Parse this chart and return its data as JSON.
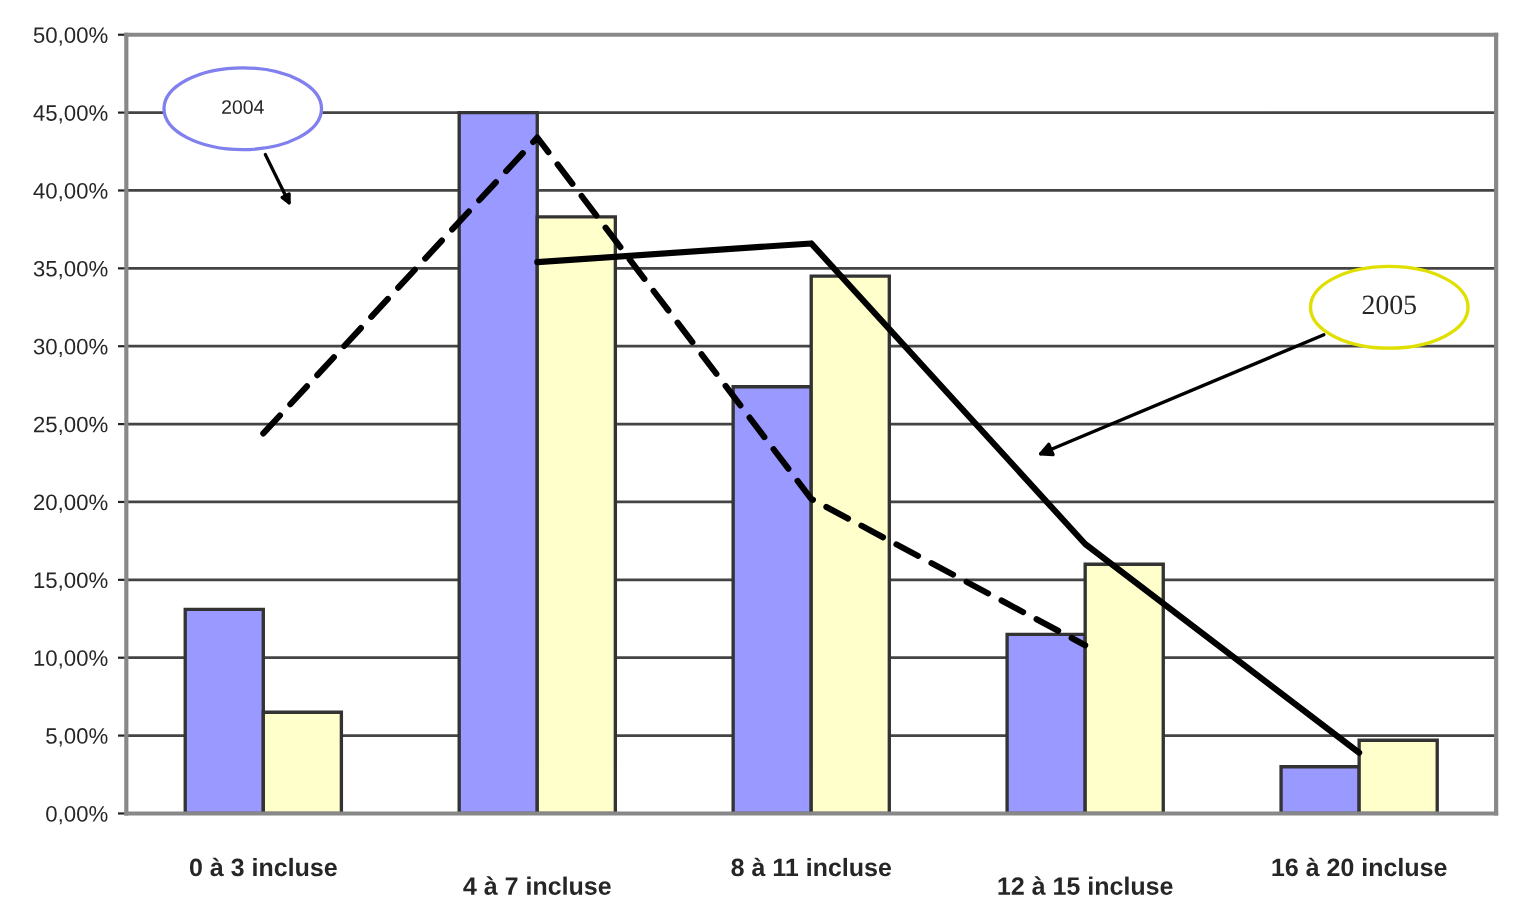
{
  "chart_data": {
    "type": "bar",
    "categories": [
      "0 à 3 incluse",
      "4 à 7 incluse",
      "8 à 11 incluse",
      "12 à 15 incluse",
      "16 à 20 incluse"
    ],
    "series": [
      {
        "color": "#9999ff",
        "values": [
          13.1,
          45.0,
          27.4,
          11.5,
          3.0
        ]
      },
      {
        "color": "#ffffcc",
        "values": [
          6.5,
          38.3,
          34.5,
          16.0,
          4.7
        ]
      },
      {
        "type": "line",
        "line_style": "dashed",
        "color": "#000000",
        "values": [
          24.4,
          43.4,
          20.2,
          10.8,
          null
        ]
      },
      {
        "type": "line",
        "line_style": "solid",
        "color": "#000000",
        "values": [
          null,
          35.4,
          36.6,
          17.3,
          3.9
        ]
      }
    ],
    "ylim": [
      0,
      50
    ],
    "yticks": [
      {
        "value": 0,
        "label": "0,00%"
      },
      {
        "value": 5,
        "label": "5,00%"
      },
      {
        "value": 10,
        "label": "10,00%"
      },
      {
        "value": 15,
        "label": "15,00%"
      },
      {
        "value": 20,
        "label": "20,00%"
      },
      {
        "value": 25,
        "label": "25,00%"
      },
      {
        "value": 30,
        "label": "30,00%"
      },
      {
        "value": 35,
        "label": "35,00%"
      },
      {
        "value": 40,
        "label": "40,00%"
      },
      {
        "value": 45,
        "label": "45,00%"
      },
      {
        "value": 50,
        "label": "50,00%"
      }
    ],
    "grid": "y",
    "annotations": [
      "2004",
      "2005"
    ]
  }
}
